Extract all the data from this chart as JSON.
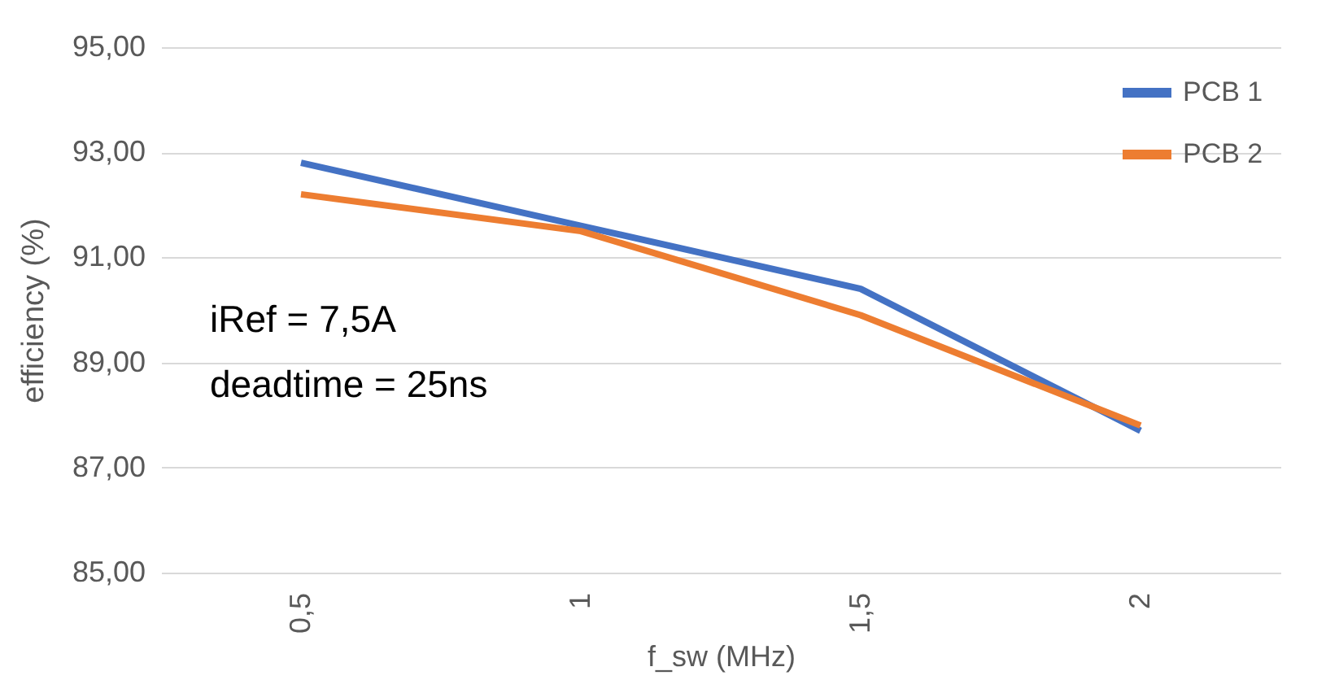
{
  "chart_data": {
    "type": "line",
    "xlabel": "f_sw (MHz)",
    "ylabel": "efficiency (%)",
    "categories": [
      "0,5",
      "1",
      "1,5",
      "2"
    ],
    "series": [
      {
        "name": "PCB 1",
        "color": "#4472c4",
        "values": [
          92.8,
          91.6,
          90.4,
          87.7
        ]
      },
      {
        "name": "PCB 2",
        "color": "#ed7d31",
        "values": [
          92.2,
          91.5,
          89.9,
          87.8
        ]
      }
    ],
    "ylim": [
      85,
      95
    ],
    "yticks": [
      {
        "value": 85,
        "label": "85,00"
      },
      {
        "value": 87,
        "label": "87,00"
      },
      {
        "value": 89,
        "label": "89,00"
      },
      {
        "value": 91,
        "label": "91,00"
      },
      {
        "value": 93,
        "label": "93,00"
      },
      {
        "value": 95,
        "label": "95,00"
      }
    ],
    "grid": "y",
    "legend": "top right",
    "marker": "none",
    "line_style": "solid",
    "annotations": [
      "iRef = 7,5A",
      "deadtime = 25ns"
    ]
  }
}
